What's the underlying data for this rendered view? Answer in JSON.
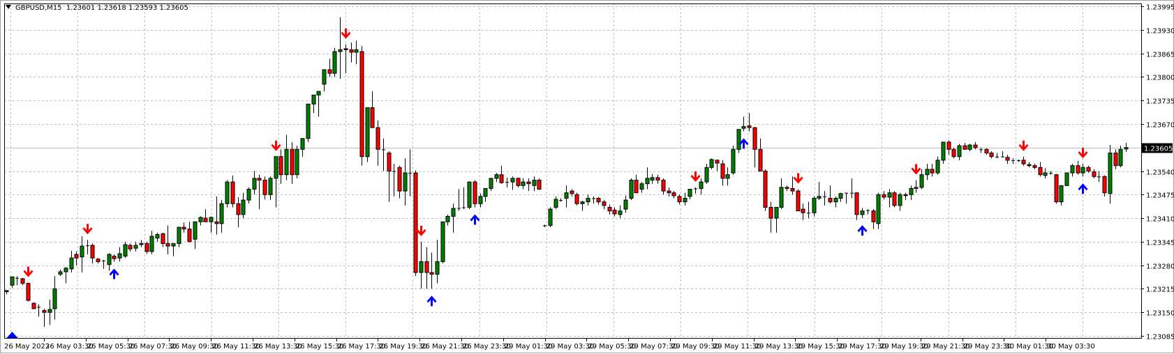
{
  "window": {
    "symbol": "GBPUSD,M15",
    "ohlc_header": "1.23601 1.23618 1.23593 1.23605"
  },
  "colors": {
    "bull_body": "#008000",
    "bear_body": "#ff0000",
    "wick": "#000000",
    "grid": "#c0c0c0",
    "up_arrow": "#0000ff",
    "down_arrow": "#ff0000",
    "price_line": "#c0c0c0",
    "price_tag_bg": "#000000",
    "price_tag_text": "#ffffff"
  },
  "chart_data": {
    "type": "candlestick",
    "title": "GBPUSD,M15",
    "header_values": {
      "open": 1.23601,
      "high": 1.23618,
      "low": 1.23593,
      "close": 1.23605
    },
    "current_price": "1.23605",
    "ylim": [
      1.23085,
      1.23995
    ],
    "y_ticks": [
      "1.23995",
      "1.23930",
      "1.23865",
      "1.23800",
      "1.23735",
      "1.23670",
      "1.23540",
      "1.23475",
      "1.23410",
      "1.23345",
      "1.23280",
      "1.23215",
      "1.23150",
      "1.23085"
    ],
    "x_ticks": [
      "26 May 2023",
      "26 May 03:30",
      "26 May 05:30",
      "26 May 07:30",
      "26 May 09:30",
      "26 May 11:30",
      "26 May 13:30",
      "26 May 15:30",
      "26 May 17:30",
      "26 May 19:30",
      "26 May 21:30",
      "26 May 23:30",
      "29 May 01:30",
      "29 May 03:30",
      "29 May 05:30",
      "29 May 07:30",
      "29 May 09:30",
      "29 May 11:30",
      "29 May 13:30",
      "29 May 15:30",
      "29 May 17:30",
      "29 May 19:30",
      "29 May 21:30",
      "29 May 23:30",
      "30 May 01:30",
      "30 May 03:30"
    ],
    "grid": true,
    "candles": [
      [
        1.23207,
        1.23212,
        1.232,
        1.2321
      ],
      [
        1.23225,
        1.23245,
        1.23218,
        1.23248
      ],
      [
        1.23245,
        1.2325,
        1.23225,
        1.23243
      ],
      [
        1.23243,
        1.23245,
        1.23225,
        1.2323
      ],
      [
        1.2323,
        1.23232,
        1.2318,
        1.23183
      ],
      [
        1.23175,
        1.23178,
        1.2316,
        1.2316
      ],
      [
        1.23165,
        1.23172,
        1.23138,
        1.23165
      ],
      [
        1.23155,
        1.2316,
        1.2311,
        1.2315
      ],
      [
        1.2315,
        1.23185,
        1.23115,
        1.23158
      ],
      [
        1.2316,
        1.2325,
        1.2313,
        1.23215
      ],
      [
        1.23255,
        1.23268,
        1.2325,
        1.23262
      ],
      [
        1.23262,
        1.23275,
        1.2323,
        1.23272
      ],
      [
        1.2327,
        1.2332,
        1.2326,
        1.233
      ],
      [
        1.2331,
        1.23318,
        1.2328,
        1.233
      ],
      [
        1.23303,
        1.2336,
        1.2326,
        1.23333
      ],
      [
        1.23335,
        1.2335,
        1.2331,
        1.23335
      ],
      [
        1.23335,
        1.2334,
        1.23285,
        1.233
      ],
      [
        1.23297,
        1.233,
        1.23285,
        1.2329
      ],
      [
        1.23292,
        1.23295,
        1.2327,
        1.23293
      ],
      [
        1.23282,
        1.23313,
        1.23265,
        1.2331
      ],
      [
        1.23305,
        1.2331,
        1.2329,
        1.23298
      ],
      [
        1.233,
        1.2333,
        1.2329,
        1.23312
      ],
      [
        1.23305,
        1.23345,
        1.233,
        1.23337
      ],
      [
        1.23335,
        1.2334,
        1.23318,
        1.23325
      ],
      [
        1.23327,
        1.23345,
        1.23318,
        1.23335
      ],
      [
        1.23337,
        1.2335,
        1.2333,
        1.2334
      ],
      [
        1.2334,
        1.23345,
        1.23312,
        1.23318
      ],
      [
        1.23318,
        1.23375,
        1.2331,
        1.2336
      ],
      [
        1.23355,
        1.2337,
        1.23345,
        1.23365
      ],
      [
        1.23367,
        1.2337,
        1.2333,
        1.2334
      ],
      [
        1.2334,
        1.2339,
        1.2331,
        1.23333
      ],
      [
        1.23333,
        1.2334,
        1.23305,
        1.2334
      ],
      [
        1.2334,
        1.23385,
        1.2333,
        1.23385
      ],
      [
        1.23385,
        1.23398,
        1.2337,
        1.2338
      ],
      [
        1.2338,
        1.234,
        1.23345,
        1.23345
      ],
      [
        1.23352,
        1.23398,
        1.23325,
        1.234
      ],
      [
        1.234,
        1.23415,
        1.2339,
        1.23412
      ],
      [
        1.2341,
        1.23435,
        1.234,
        1.234
      ],
      [
        1.234,
        1.23415,
        1.2337,
        1.23412
      ],
      [
        1.234,
        1.2347,
        1.23365,
        1.23395
      ],
      [
        1.23395,
        1.2346,
        1.2337,
        1.2345
      ],
      [
        1.2345,
        1.23515,
        1.2344,
        1.2351
      ],
      [
        1.2351,
        1.23528,
        1.2344,
        1.2345
      ],
      [
        1.2345,
        1.23468,
        1.23385,
        1.2342
      ],
      [
        1.2342,
        1.2348,
        1.2341,
        1.2346
      ],
      [
        1.2346,
        1.23495,
        1.2345,
        1.2349
      ],
      [
        1.2349,
        1.2354,
        1.23475,
        1.2352
      ],
      [
        1.2352,
        1.2353,
        1.23435,
        1.23515
      ],
      [
        1.23515,
        1.23525,
        1.23462,
        1.23475
      ],
      [
        1.23475,
        1.23525,
        1.2346,
        1.2352
      ],
      [
        1.2352,
        1.2358,
        1.2344,
        1.2358
      ],
      [
        1.2358,
        1.236,
        1.23505,
        1.2353
      ],
      [
        1.2353,
        1.2364,
        1.23515,
        1.236
      ],
      [
        1.236,
        1.2362,
        1.23505,
        1.2353
      ],
      [
        1.2353,
        1.2361,
        1.2352,
        1.236
      ],
      [
        1.236,
        1.23625,
        1.2358,
        1.2363
      ],
      [
        1.2363,
        1.2368,
        1.2362,
        1.23725
      ],
      [
        1.23725,
        1.2374,
        1.237,
        1.2375
      ],
      [
        1.2375,
        1.2376,
        1.2369,
        1.2376
      ],
      [
        1.2378,
        1.238,
        1.2376,
        1.2382
      ],
      [
        1.2382,
        1.2385,
        1.238,
        1.2381
      ],
      [
        1.2381,
        1.2388,
        1.238,
        1.2387
      ],
      [
        1.2387,
        1.23965,
        1.23795,
        1.23875
      ],
      [
        1.23878,
        1.2389,
        1.2381,
        1.23875
      ],
      [
        1.23875,
        1.23895,
        1.2384,
        1.23868
      ],
      [
        1.23868,
        1.239,
        1.23835,
        1.23875
      ],
      [
        1.2387,
        1.23885,
        1.23555,
        1.2358
      ],
      [
        1.2358,
        1.23705,
        1.23565,
        1.23715
      ],
      [
        1.23715,
        1.2376,
        1.23665,
        1.2366
      ],
      [
        1.2366,
        1.2368,
        1.23555,
        1.236
      ],
      [
        1.236,
        1.2363,
        1.2354,
        1.236
      ],
      [
        1.2359,
        1.23595,
        1.23455,
        1.2354
      ],
      [
        1.2354,
        1.2356,
        1.2347,
        1.2354
      ],
      [
        1.2355,
        1.23555,
        1.23465,
        1.23485
      ],
      [
        1.23485,
        1.23575,
        1.23445,
        1.23535
      ],
      [
        1.23535,
        1.236,
        1.2347,
        1.23535
      ],
      [
        1.23535,
        1.23542,
        1.2325,
        1.2326
      ],
      [
        1.2326,
        1.23345,
        1.23215,
        1.2329
      ],
      [
        1.2329,
        1.2333,
        1.23215,
        1.2326
      ],
      [
        1.2326,
        1.23315,
        1.23215,
        1.23255
      ],
      [
        1.23255,
        1.2335,
        1.2323,
        1.2329
      ],
      [
        1.2329,
        1.2339,
        1.23285,
        1.234
      ],
      [
        1.234,
        1.2342,
        1.2339,
        1.23415
      ],
      [
        1.23415,
        1.2345,
        1.2337,
        1.23437
      ],
      [
        1.23437,
        1.2349,
        1.2343,
        1.23438
      ],
      [
        1.23438,
        1.23495,
        1.23435,
        1.2344
      ],
      [
        1.2344,
        1.2351,
        1.23435,
        1.2351
      ],
      [
        1.2351,
        1.23515,
        1.2344,
        1.2345
      ],
      [
        1.2345,
        1.23478,
        1.2344,
        1.2347
      ],
      [
        1.2347,
        1.2349,
        1.23455,
        1.23492
      ],
      [
        1.23492,
        1.2352,
        1.23485,
        1.2352
      ],
      [
        1.2352,
        1.23535,
        1.2351,
        1.2353
      ],
      [
        1.2353,
        1.23555,
        1.23505,
        1.23508
      ],
      [
        1.23508,
        1.23522,
        1.23495,
        1.2351
      ],
      [
        1.2351,
        1.23525,
        1.23488,
        1.2352
      ],
      [
        1.2352,
        1.23522,
        1.23495,
        1.235
      ],
      [
        1.235,
        1.2352,
        1.2349,
        1.2351
      ],
      [
        1.2351,
        1.2352,
        1.23485,
        1.23505
      ],
      [
        1.235,
        1.23525,
        1.23485,
        1.23515
      ],
      [
        1.23515,
        1.2352,
        1.23488,
        1.2349
      ],
      [
        1.2339,
        1.23392,
        1.23385,
        1.23388
      ],
      [
        1.2339,
        1.2344,
        1.23385,
        1.23435
      ],
      [
        1.2344,
        1.2347,
        1.23435,
        1.23462
      ],
      [
        1.2346,
        1.23465,
        1.23455,
        1.23458
      ],
      [
        1.23465,
        1.235,
        1.2344,
        1.2348
      ],
      [
        1.23485,
        1.2349,
        1.2347,
        1.23478
      ],
      [
        1.23475,
        1.2348,
        1.23445,
        1.2345
      ],
      [
        1.2345,
        1.23458,
        1.2343,
        1.23455
      ],
      [
        1.23455,
        1.23475,
        1.23445,
        1.23465
      ],
      [
        1.23465,
        1.2347,
        1.2345,
        1.23465
      ],
      [
        1.23465,
        1.23468,
        1.23448,
        1.23455
      ],
      [
        1.23455,
        1.2346,
        1.23435,
        1.23445
      ],
      [
        1.2344,
        1.23448,
        1.2342,
        1.2343
      ],
      [
        1.23432,
        1.2344,
        1.23415,
        1.23422
      ],
      [
        1.2342,
        1.23445,
        1.2341,
        1.2343
      ],
      [
        1.23435,
        1.23472,
        1.23425,
        1.2346
      ],
      [
        1.23465,
        1.2352,
        1.2346,
        1.23515
      ],
      [
        1.23515,
        1.2353,
        1.2348,
        1.2348
      ],
      [
        1.2349,
        1.2351,
        1.2348,
        1.23505
      ],
      [
        1.23505,
        1.2355,
        1.2349,
        1.2352
      ],
      [
        1.23515,
        1.23532,
        1.23505,
        1.23522
      ],
      [
        1.23522,
        1.2353,
        1.23505,
        1.23515
      ],
      [
        1.23515,
        1.2352,
        1.23475,
        1.23485
      ],
      [
        1.23485,
        1.23495,
        1.2347,
        1.2348
      ],
      [
        1.2348,
        1.23485,
        1.23465,
        1.23472
      ],
      [
        1.2347,
        1.23475,
        1.23448,
        1.23455
      ],
      [
        1.23455,
        1.2348,
        1.23445,
        1.23465
      ],
      [
        1.2347,
        1.23485,
        1.23462,
        1.2349
      ],
      [
        1.23492,
        1.23495,
        1.23478,
        1.23492
      ],
      [
        1.23492,
        1.2352,
        1.23475,
        1.2351
      ],
      [
        1.2351,
        1.2356,
        1.23505,
        1.2355
      ],
      [
        1.2355,
        1.23575,
        1.23545,
        1.23572
      ],
      [
        1.2357,
        1.23572,
        1.2354,
        1.23562
      ],
      [
        1.2356,
        1.2357,
        1.235,
        1.2352
      ],
      [
        1.2352,
        1.2355,
        1.235,
        1.2353
      ],
      [
        1.23535,
        1.2361,
        1.2353,
        1.236
      ],
      [
        1.236,
        1.2365,
        1.2359,
        1.23655
      ],
      [
        1.23658,
        1.2369,
        1.2365,
        1.23663
      ],
      [
        1.23665,
        1.237,
        1.2365,
        1.2366
      ],
      [
        1.2366,
        1.23662,
        1.2355,
        1.236
      ],
      [
        1.236,
        1.2363,
        1.23545,
        1.2354
      ],
      [
        1.2354,
        1.23545,
        1.2343,
        1.2344
      ],
      [
        1.2344,
        1.23455,
        1.2337,
        1.2341
      ],
      [
        1.2341,
        1.2344,
        1.2337,
        1.2344
      ],
      [
        1.2344,
        1.2352,
        1.23435,
        1.23495
      ],
      [
        1.23495,
        1.235,
        1.23485,
        1.23492
      ],
      [
        1.23492,
        1.23525,
        1.23475,
        1.23485
      ],
      [
        1.23485,
        1.2349,
        1.2343,
        1.2343
      ],
      [
        1.23435,
        1.2345,
        1.23405,
        1.23425
      ],
      [
        1.23425,
        1.23455,
        1.2341,
        1.23425
      ],
      [
        1.23425,
        1.2347,
        1.23415,
        1.23465
      ],
      [
        1.23465,
        1.2351,
        1.2346,
        1.2347
      ],
      [
        1.2347,
        1.23485,
        1.23445,
        1.2347
      ],
      [
        1.23465,
        1.235,
        1.2345,
        1.23455
      ],
      [
        1.23455,
        1.2347,
        1.2344,
        1.23465
      ],
      [
        1.23465,
        1.2348,
        1.23455,
        1.23478
      ],
      [
        1.23478,
        1.2348,
        1.2345,
        1.2348
      ],
      [
        1.2348,
        1.2352,
        1.23465,
        1.2348
      ],
      [
        1.2348,
        1.23482,
        1.23405,
        1.2342
      ],
      [
        1.2342,
        1.23438,
        1.2341,
        1.2343
      ],
      [
        1.2343,
        1.23435,
        1.2342,
        1.23432
      ],
      [
        1.2343,
        1.23435,
        1.2338,
        1.234
      ],
      [
        1.23395,
        1.2348,
        1.2338,
        1.23475
      ],
      [
        1.23475,
        1.23485,
        1.23462,
        1.23468
      ],
      [
        1.23468,
        1.2349,
        1.2344,
        1.2348
      ],
      [
        1.2348,
        1.23485,
        1.2344,
        1.23445
      ],
      [
        1.23445,
        1.2348,
        1.2343,
        1.23475
      ],
      [
        1.23472,
        1.2348,
        1.2346,
        1.23475
      ],
      [
        1.23475,
        1.235,
        1.2346,
        1.23492
      ],
      [
        1.23492,
        1.23515,
        1.2348,
        1.23495
      ],
      [
        1.23495,
        1.23545,
        1.2349,
        1.2353
      ],
      [
        1.2353,
        1.2356,
        1.23515,
        1.23545
      ],
      [
        1.23545,
        1.2356,
        1.23525,
        1.23535
      ],
      [
        1.23535,
        1.2358,
        1.2353,
        1.2357
      ],
      [
        1.2357,
        1.2362,
        1.2356,
        1.2362
      ],
      [
        1.2362,
        1.23625,
        1.23585,
        1.236
      ],
      [
        1.236,
        1.23605,
        1.23575,
        1.2358
      ],
      [
        1.2358,
        1.23615,
        1.2357,
        1.2361
      ],
      [
        1.2361,
        1.23618,
        1.236,
        1.236
      ],
      [
        1.236,
        1.23615,
        1.23595,
        1.23612
      ],
      [
        1.23612,
        1.2362,
        1.236,
        1.23605
      ],
      [
        1.236,
        1.23605,
        1.2359,
        1.236
      ],
      [
        1.236,
        1.23603,
        1.23585,
        1.2359
      ],
      [
        1.2359,
        1.23595,
        1.23575,
        1.2358
      ],
      [
        1.2358,
        1.2359,
        1.23575,
        1.2358
      ],
      [
        1.2358,
        1.23595,
        1.23578,
        1.2358
      ],
      [
        1.23578,
        1.23585,
        1.2356,
        1.2357
      ],
      [
        1.2357,
        1.23575,
        1.2356,
        1.2357
      ],
      [
        1.2357,
        1.23572,
        1.23565,
        1.2357
      ],
      [
        1.2357,
        1.2358,
        1.23555,
        1.2356
      ],
      [
        1.23558,
        1.23565,
        1.2355,
        1.23555
      ],
      [
        1.23555,
        1.2356,
        1.23545,
        1.2355
      ],
      [
        1.2355,
        1.23565,
        1.23525,
        1.2353
      ],
      [
        1.23528,
        1.23548,
        1.2352,
        1.23535
      ],
      [
        1.23535,
        1.2354,
        1.2353,
        1.23535
      ],
      [
        1.2353,
        1.23532,
        1.2345,
        1.23455
      ],
      [
        1.23455,
        1.23485,
        1.23445,
        1.235
      ],
      [
        1.235,
        1.23535,
        1.235,
        1.23535
      ],
      [
        1.23535,
        1.2356,
        1.23525,
        1.23555
      ],
      [
        1.23555,
        1.23568,
        1.2353,
        1.23535
      ],
      [
        1.23535,
        1.2356,
        1.23525,
        1.2355
      ],
      [
        1.2355,
        1.23555,
        1.23535,
        1.2354
      ],
      [
        1.23538,
        1.23545,
        1.2352,
        1.23525
      ],
      [
        1.23525,
        1.2354,
        1.2351,
        1.23525
      ],
      [
        1.23525,
        1.23528,
        1.2347,
        1.2348
      ],
      [
        1.23478,
        1.23612,
        1.2345,
        1.2359
      ],
      [
        1.2359,
        1.236,
        1.23545,
        1.23555
      ],
      [
        1.23555,
        1.2361,
        1.2355,
        1.236
      ],
      [
        1.23601,
        1.23618,
        1.23593,
        1.23605
      ]
    ],
    "signals": [
      {
        "index": 4,
        "type": "down"
      },
      {
        "index": 1,
        "type": "up_bottom"
      },
      {
        "index": 15,
        "type": "down"
      },
      {
        "index": 20,
        "type": "up"
      },
      {
        "index": 50,
        "type": "down"
      },
      {
        "index": 63,
        "type": "down"
      },
      {
        "index": 79,
        "type": "up"
      },
      {
        "index": 76,
        "type": "down_skip"
      },
      {
        "index": 77,
        "type": "down"
      },
      {
        "index": 87,
        "type": "up"
      },
      {
        "index": 104,
        "type": "down_skip"
      },
      {
        "index": 128,
        "type": "down"
      },
      {
        "index": 137,
        "type": "up"
      },
      {
        "index": 147,
        "type": "down"
      },
      {
        "index": 159,
        "type": "up"
      },
      {
        "index": 169,
        "type": "down"
      },
      {
        "index": 189,
        "type": "down"
      },
      {
        "index": 200,
        "type": "up"
      },
      {
        "index": 200,
        "type": "down"
      }
    ]
  }
}
